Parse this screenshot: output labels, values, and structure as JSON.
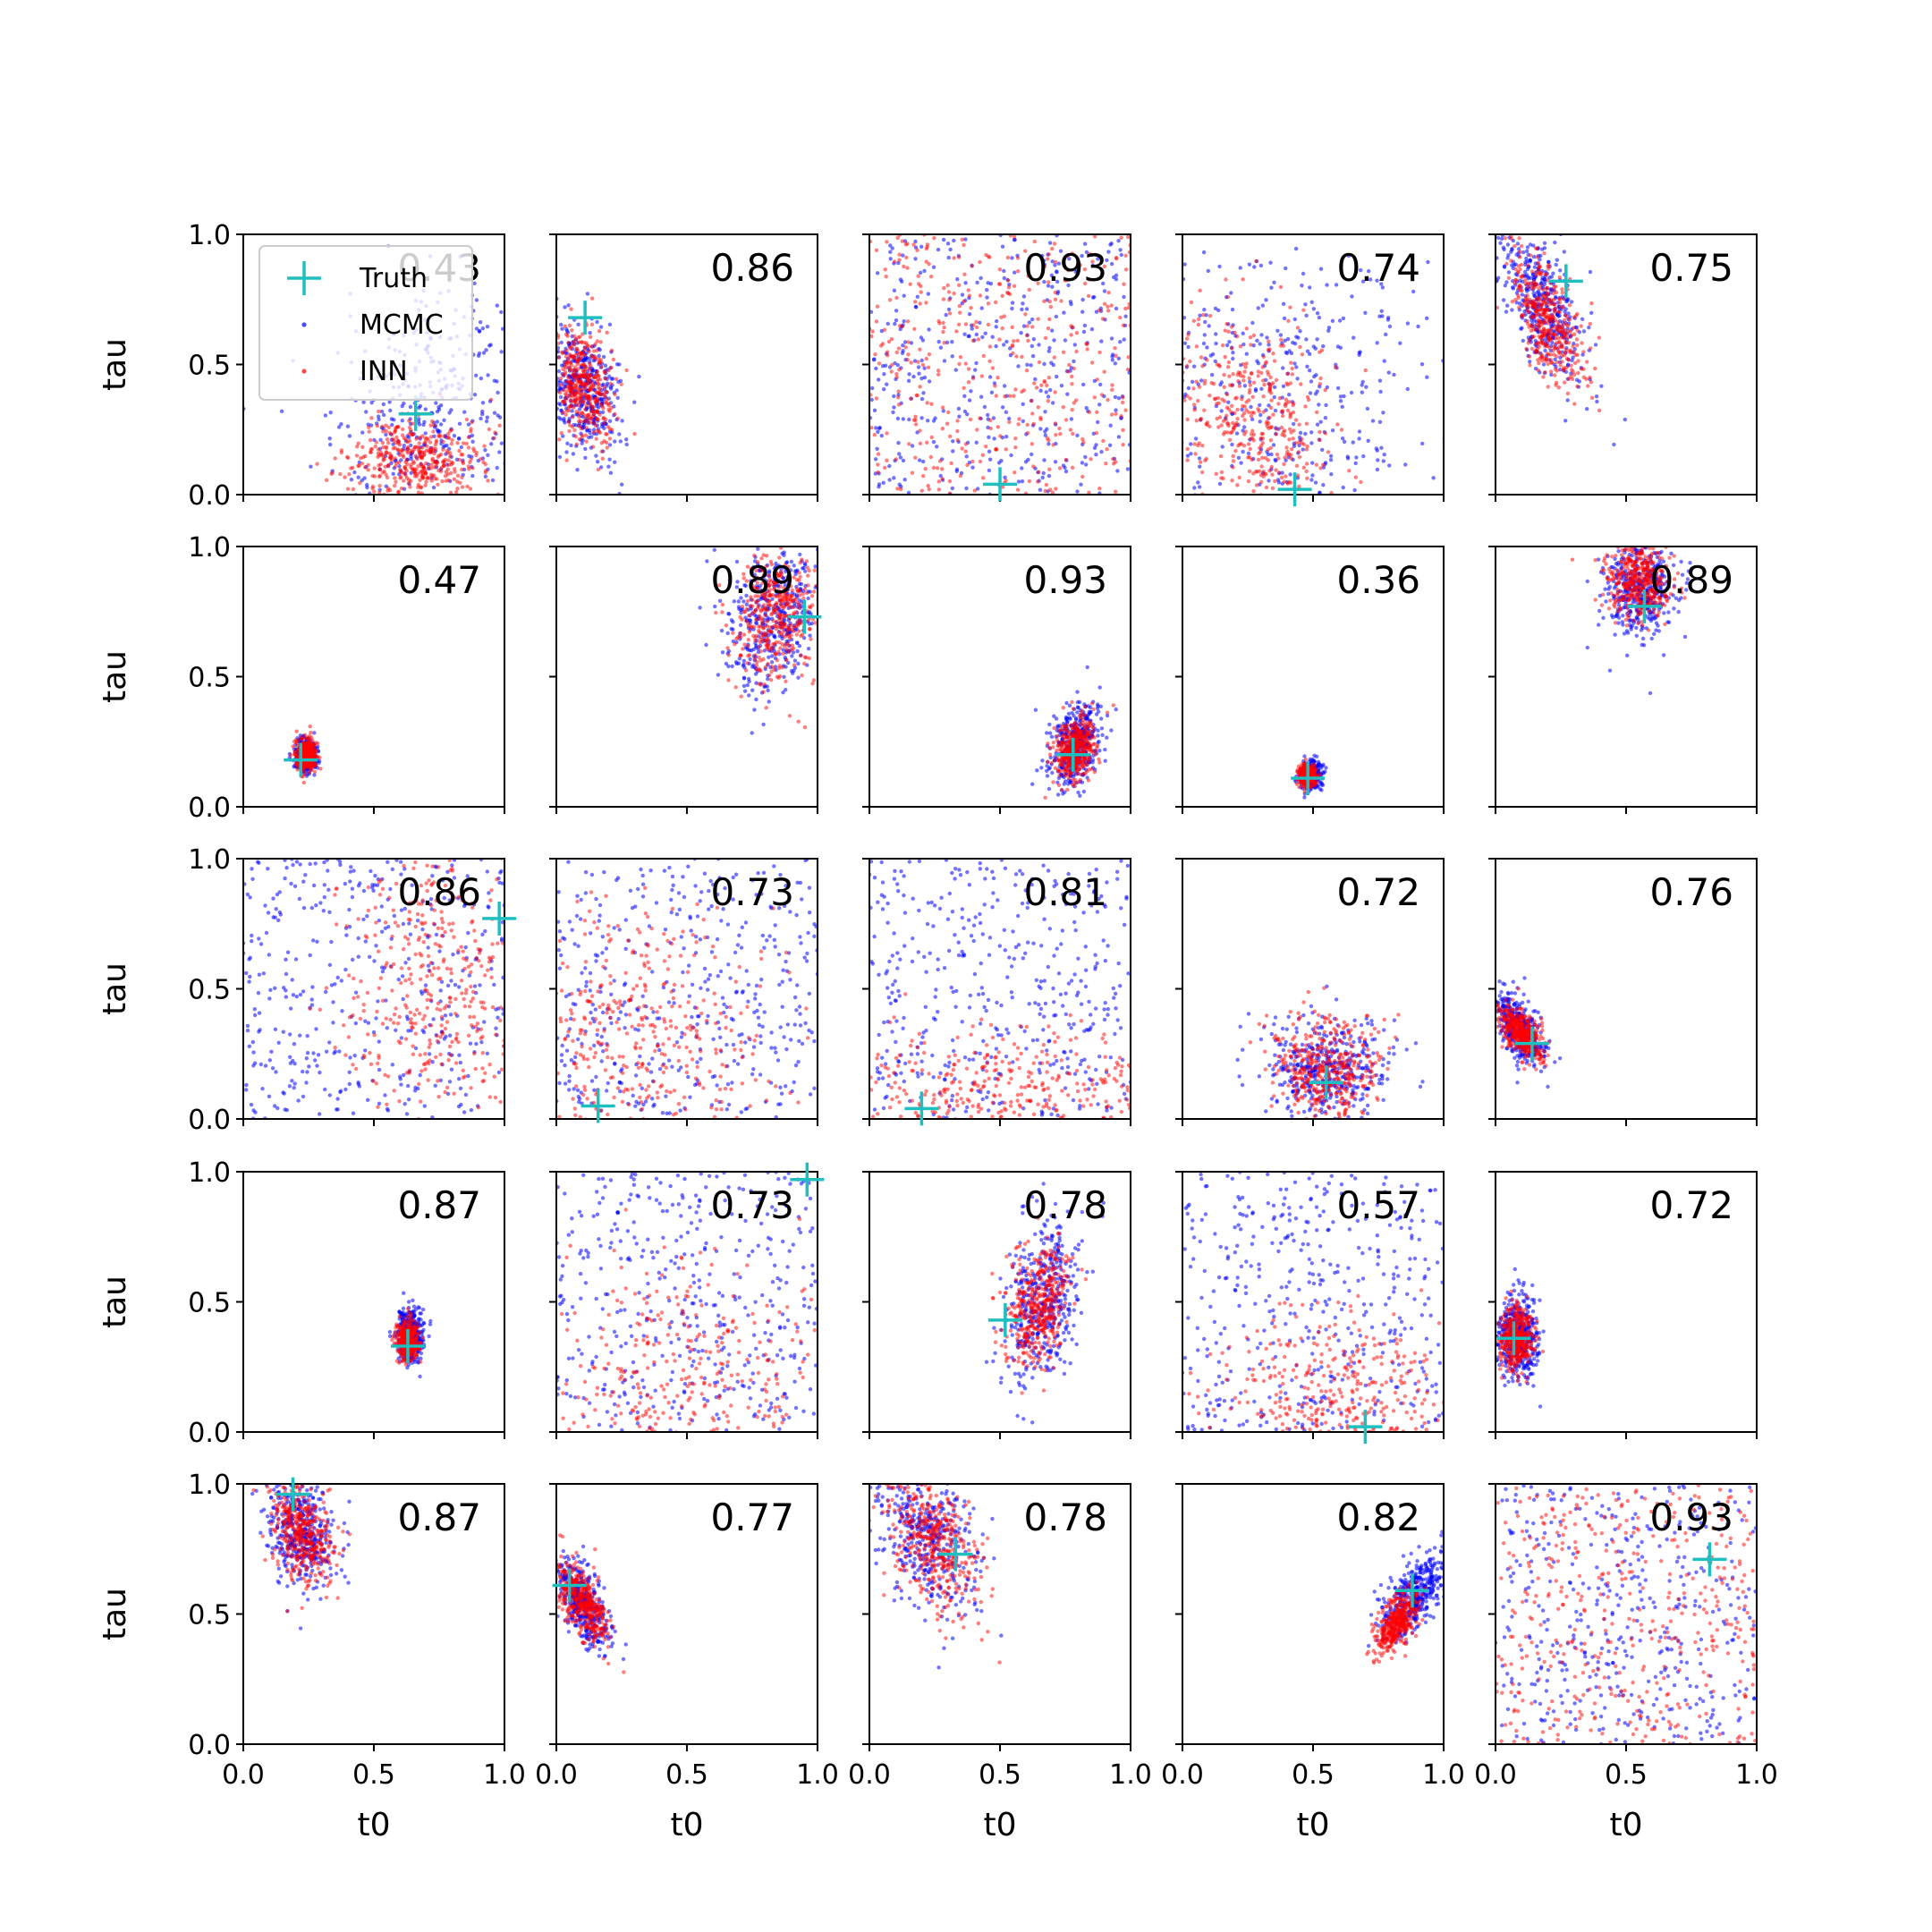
{
  "chart_data": {
    "type": "scatter",
    "layout": "5x5 grid of small-multiple scatter plots",
    "xlabel": "t0",
    "ylabel": "tau",
    "xlim": [
      0,
      1
    ],
    "ylim": [
      0,
      1
    ],
    "xticks": [
      "0.0",
      "0.5",
      "1.0"
    ],
    "yticks": [
      "0.0",
      "0.5",
      "1.0"
    ],
    "grid": false,
    "legend": {
      "placement": "top-left of first panel",
      "entries": [
        {
          "label": "Truth",
          "marker": "plus",
          "color": "#1fbfbf"
        },
        {
          "label": "MCMC",
          "marker": "dot",
          "color": "#0000ff"
        },
        {
          "label": "INN",
          "marker": "dot",
          "color": "#ff0000"
        }
      ]
    },
    "series_colors": {
      "truth": "#1fbfbf",
      "mcmc": "#0000ff",
      "inn": "#ff0000"
    },
    "panels": [
      {
        "score": "0.43",
        "truth": [
          0.66,
          0.31
        ],
        "inn": {
          "cx": 0.66,
          "cy": 0.13,
          "sx": 0.13,
          "sy": 0.08,
          "rho": 0.0
        },
        "mcmc": {
          "cx": 0.72,
          "cy": 0.28,
          "sx": 0.18,
          "sy": 0.25,
          "rho": 0.3
        }
      },
      {
        "score": "0.86",
        "truth": [
          0.11,
          0.68
        ],
        "inn": {
          "cx": 0.1,
          "cy": 0.42,
          "sx": 0.06,
          "sy": 0.12,
          "rho": -0.2
        },
        "mcmc": {
          "cx": 0.1,
          "cy": 0.42,
          "sx": 0.07,
          "sy": 0.13,
          "rho": -0.2
        }
      },
      {
        "score": "0.93",
        "truth": [
          0.5,
          0.04
        ],
        "inn": {
          "uniform": true
        },
        "mcmc": {
          "uniform": true
        }
      },
      {
        "score": "0.74",
        "truth": [
          0.43,
          0.02
        ],
        "inn": {
          "cx": 0.26,
          "cy": 0.3,
          "sx": 0.15,
          "sy": 0.2,
          "rho": -0.3
        },
        "mcmc": {
          "cx": 0.4,
          "cy": 0.4,
          "sx": 0.3,
          "sy": 0.3,
          "rho": -0.1
        }
      },
      {
        "score": "0.75",
        "truth": [
          0.27,
          0.82
        ],
        "inn": {
          "cx": 0.2,
          "cy": 0.67,
          "sx": 0.07,
          "sy": 0.13,
          "rho": -0.6
        },
        "mcmc": {
          "cx": 0.18,
          "cy": 0.72,
          "sx": 0.08,
          "sy": 0.15,
          "rho": -0.6
        }
      },
      {
        "score": "0.47",
        "truth": [
          0.22,
          0.18
        ],
        "inn": {
          "cx": 0.24,
          "cy": 0.2,
          "sx": 0.02,
          "sy": 0.03,
          "rho": 0.0
        },
        "mcmc": {
          "cx": 0.24,
          "cy": 0.2,
          "sx": 0.02,
          "sy": 0.03,
          "rho": 0.0
        }
      },
      {
        "score": "0.89",
        "truth": [
          0.95,
          0.73
        ],
        "inn": {
          "cx": 0.84,
          "cy": 0.74,
          "sx": 0.08,
          "sy": 0.13,
          "rho": 0.2
        },
        "mcmc": {
          "cx": 0.82,
          "cy": 0.72,
          "sx": 0.09,
          "sy": 0.14,
          "rho": 0.2
        }
      },
      {
        "score": "0.93",
        "truth": [
          0.78,
          0.2
        ],
        "inn": {
          "cx": 0.78,
          "cy": 0.22,
          "sx": 0.04,
          "sy": 0.06,
          "rho": 0.2
        },
        "mcmc": {
          "cx": 0.79,
          "cy": 0.24,
          "sx": 0.05,
          "sy": 0.08,
          "rho": 0.3
        }
      },
      {
        "score": "0.36",
        "truth": [
          0.48,
          0.11
        ],
        "inn": {
          "cx": 0.48,
          "cy": 0.12,
          "sx": 0.015,
          "sy": 0.02,
          "rho": 0.0
        },
        "mcmc": {
          "cx": 0.49,
          "cy": 0.12,
          "sx": 0.02,
          "sy": 0.025,
          "rho": 0.0
        }
      },
      {
        "score": "0.89",
        "truth": [
          0.57,
          0.77
        ],
        "inn": {
          "cx": 0.55,
          "cy": 0.87,
          "sx": 0.06,
          "sy": 0.07,
          "rho": 0.0
        },
        "mcmc": {
          "cx": 0.55,
          "cy": 0.84,
          "sx": 0.07,
          "sy": 0.09,
          "rho": 0.0
        }
      },
      {
        "score": "0.86",
        "truth": [
          0.98,
          0.77
        ],
        "inn": {
          "cx": 0.75,
          "cy": 0.5,
          "sx": 0.2,
          "sy": 0.3,
          "rho": 0.0
        },
        "mcmc": {
          "uniform": true
        }
      },
      {
        "score": "0.73",
        "truth": [
          0.16,
          0.05
        ],
        "inn": {
          "cx": 0.3,
          "cy": 0.3,
          "sx": 0.25,
          "sy": 0.25,
          "rho": 0.0
        },
        "mcmc": {
          "uniform": true
        }
      },
      {
        "score": "0.81",
        "truth": [
          0.2,
          0.04
        ],
        "inn": {
          "cx": 0.5,
          "cy": 0.1,
          "sx": 0.35,
          "sy": 0.12,
          "rho": 0.0
        },
        "mcmc": {
          "uniform": true
        }
      },
      {
        "score": "0.72",
        "truth": [
          0.55,
          0.14
        ],
        "inn": {
          "cx": 0.55,
          "cy": 0.2,
          "sx": 0.1,
          "sy": 0.1,
          "rho": 0.0
        },
        "mcmc": {
          "cx": 0.55,
          "cy": 0.2,
          "sx": 0.12,
          "sy": 0.1,
          "rho": 0.0
        }
      },
      {
        "score": "0.76",
        "truth": [
          0.14,
          0.29
        ],
        "inn": {
          "cx": 0.1,
          "cy": 0.33,
          "sx": 0.04,
          "sy": 0.05,
          "rho": -0.6
        },
        "mcmc": {
          "cx": 0.09,
          "cy": 0.35,
          "sx": 0.05,
          "sy": 0.07,
          "rho": -0.6
        }
      },
      {
        "score": "0.87",
        "truth": [
          0.63,
          0.33
        ],
        "inn": {
          "cx": 0.63,
          "cy": 0.35,
          "sx": 0.02,
          "sy": 0.04,
          "rho": 0.0
        },
        "mcmc": {
          "cx": 0.64,
          "cy": 0.37,
          "sx": 0.025,
          "sy": 0.05,
          "rho": 0.0
        }
      },
      {
        "score": "0.73",
        "truth": [
          0.96,
          0.97
        ],
        "inn": {
          "cx": 0.5,
          "cy": 0.15,
          "sx": 0.3,
          "sy": 0.25,
          "rho": 0.0
        },
        "mcmc": {
          "uniform": true
        }
      },
      {
        "score": "0.78",
        "truth": [
          0.52,
          0.43
        ],
        "inn": {
          "cx": 0.65,
          "cy": 0.5,
          "sx": 0.06,
          "sy": 0.12,
          "rho": 0.3
        },
        "mcmc": {
          "cx": 0.66,
          "cy": 0.5,
          "sx": 0.08,
          "sy": 0.16,
          "rho": 0.3
        }
      },
      {
        "score": "0.57",
        "truth": [
          0.7,
          0.02
        ],
        "inn": {
          "cx": 0.6,
          "cy": 0.1,
          "sx": 0.25,
          "sy": 0.18,
          "rho": 0.0
        },
        "mcmc": {
          "uniform": true
        }
      },
      {
        "score": "0.72",
        "truth": [
          0.07,
          0.36
        ],
        "inn": {
          "cx": 0.08,
          "cy": 0.36,
          "sx": 0.03,
          "sy": 0.06,
          "rho": 0.0
        },
        "mcmc": {
          "cx": 0.09,
          "cy": 0.36,
          "sx": 0.04,
          "sy": 0.08,
          "rho": 0.0
        }
      },
      {
        "score": "0.87",
        "truth": [
          0.19,
          0.96
        ],
        "inn": {
          "cx": 0.22,
          "cy": 0.82,
          "sx": 0.06,
          "sy": 0.1,
          "rho": -0.3
        },
        "mcmc": {
          "cx": 0.22,
          "cy": 0.82,
          "sx": 0.07,
          "sy": 0.12,
          "rho": -0.3
        }
      },
      {
        "score": "0.77",
        "truth": [
          0.05,
          0.61
        ],
        "inn": {
          "cx": 0.1,
          "cy": 0.55,
          "sx": 0.05,
          "sy": 0.08,
          "rho": -0.6
        },
        "mcmc": {
          "cx": 0.1,
          "cy": 0.55,
          "sx": 0.05,
          "sy": 0.09,
          "rho": -0.6
        }
      },
      {
        "score": "0.78",
        "truth": [
          0.33,
          0.73
        ],
        "inn": {
          "cx": 0.25,
          "cy": 0.76,
          "sx": 0.09,
          "sy": 0.13,
          "rho": -0.4
        },
        "mcmc": {
          "cx": 0.22,
          "cy": 0.8,
          "sx": 0.1,
          "sy": 0.14,
          "rho": -0.4
        }
      },
      {
        "score": "0.82",
        "truth": [
          0.88,
          0.59
        ],
        "inn": {
          "cx": 0.82,
          "cy": 0.47,
          "sx": 0.04,
          "sy": 0.06,
          "rho": 0.6
        },
        "mcmc": {
          "cx": 0.88,
          "cy": 0.57,
          "sx": 0.06,
          "sy": 0.08,
          "rho": 0.6
        }
      },
      {
        "score": "0.93",
        "truth": [
          0.82,
          0.71
        ],
        "inn": {
          "uniform": true
        },
        "mcmc": {
          "uniform": true
        }
      }
    ]
  }
}
